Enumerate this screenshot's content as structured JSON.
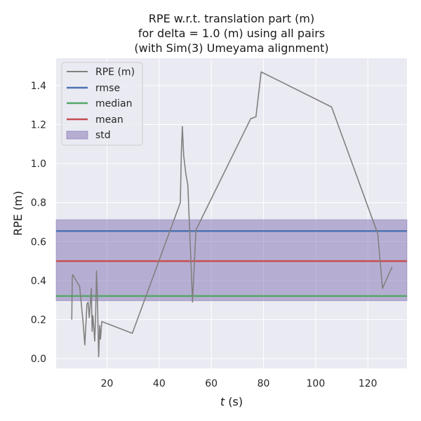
{
  "chart_data": {
    "type": "line",
    "title": [
      "RPE w.r.t. translation part (m)",
      "for delta = 1.0 (m) using all pairs",
      "(with Sim(3) Umeyama alignment)"
    ],
    "xlabel_var": "t",
    "xlabel_unit": " (s)",
    "ylabel": "RPE (m)",
    "xlim": [
      0.5,
      135
    ],
    "ylim": [
      -0.05,
      1.54
    ],
    "xticks": [
      20,
      40,
      60,
      80,
      100,
      120
    ],
    "yticks": [
      0.0,
      0.2,
      0.4,
      0.6,
      0.8,
      1.0,
      1.2,
      1.4
    ],
    "ytick_labels": [
      "0.0",
      "0.2",
      "0.4",
      "0.6",
      "0.8",
      "1.0",
      "1.2",
      "1.4"
    ],
    "series": [
      {
        "name": "RPE (m)",
        "color": "#808080",
        "x": [
          6.5,
          6.7,
          6.9,
          9.5,
          10.8,
          11.5,
          12.3,
          12.8,
          13.2,
          13.6,
          14.0,
          14.3,
          14.6,
          15.0,
          15.3,
          15.6,
          16.0,
          16.3,
          16.8,
          17.2,
          17.5,
          18.0,
          29.7,
          48.1,
          48.5,
          48.9,
          49.4,
          50.2,
          51.0,
          52.8,
          54.1,
          75.1,
          77.1,
          79.1,
          106.1,
          123.8,
          125.6,
          129.3
        ],
        "y": [
          0.2,
          0.42,
          0.43,
          0.37,
          0.19,
          0.07,
          0.28,
          0.29,
          0.21,
          0.28,
          0.36,
          0.14,
          0.22,
          0.15,
          0.09,
          0.2,
          0.45,
          0.33,
          0.01,
          0.17,
          0.1,
          0.19,
          0.13,
          0.8,
          1.05,
          1.19,
          1.04,
          0.95,
          0.89,
          0.29,
          0.66,
          1.23,
          1.24,
          1.47,
          1.29,
          0.64,
          0.36,
          0.47
        ]
      }
    ],
    "stats": [
      {
        "name": "rmse",
        "value": 0.654,
        "color": "#4c72b0"
      },
      {
        "name": "median",
        "value": 0.321,
        "color": "#55a868"
      },
      {
        "name": "mean",
        "value": 0.5,
        "color": "#c44e52"
      }
    ],
    "std": {
      "name": "std",
      "low": 0.297,
      "high": 0.712,
      "color": "#8172b2"
    },
    "legend": {
      "placement": "upper-left",
      "entries": [
        "RPE (m)",
        "rmse",
        "median",
        "mean",
        "std"
      ]
    },
    "grid": true,
    "style": {
      "plot_background": "#eaeaf2",
      "grid_color": "#ffffff"
    }
  }
}
